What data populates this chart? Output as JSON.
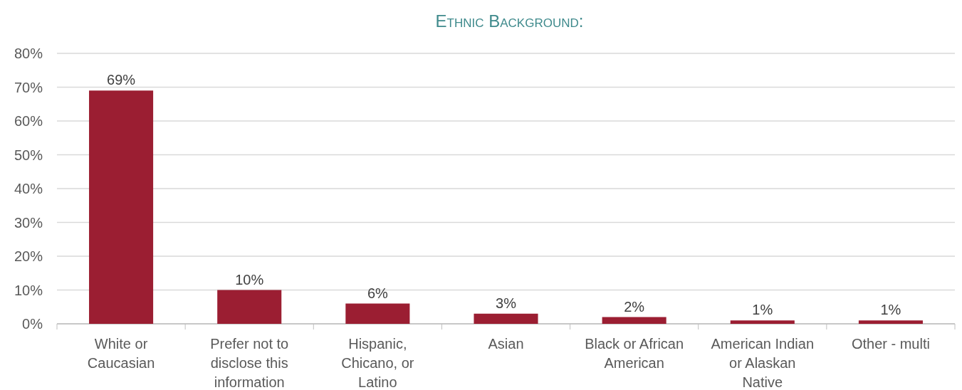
{
  "chart_data": {
    "type": "bar",
    "title": "Ethnic Background:",
    "categories": [
      "White or Caucasian",
      "Prefer not to disclose this information",
      "Hispanic, Chicano, or Latino",
      "Asian",
      "Black or African American",
      "American Indian or Alaskan Native",
      "Other - multi"
    ],
    "values": [
      69,
      10,
      6,
      3,
      2,
      1,
      1
    ],
    "color": "#9b1e32",
    "ylim": [
      0,
      80
    ],
    "yticks": [
      {
        "value": 0,
        "label": "0%"
      },
      {
        "value": 10,
        "label": "10%"
      },
      {
        "value": 20,
        "label": "20%"
      },
      {
        "value": 30,
        "label": "30%"
      },
      {
        "value": 40,
        "label": "40%"
      },
      {
        "value": 50,
        "label": "50%"
      },
      {
        "value": 60,
        "label": "60%"
      },
      {
        "value": 70,
        "label": "70%"
      },
      {
        "value": 80,
        "label": "80%"
      }
    ],
    "value_labels": [
      "69%",
      "10%",
      "6%",
      "3%",
      "2%",
      "1%",
      "1%"
    ],
    "grid": "y"
  }
}
